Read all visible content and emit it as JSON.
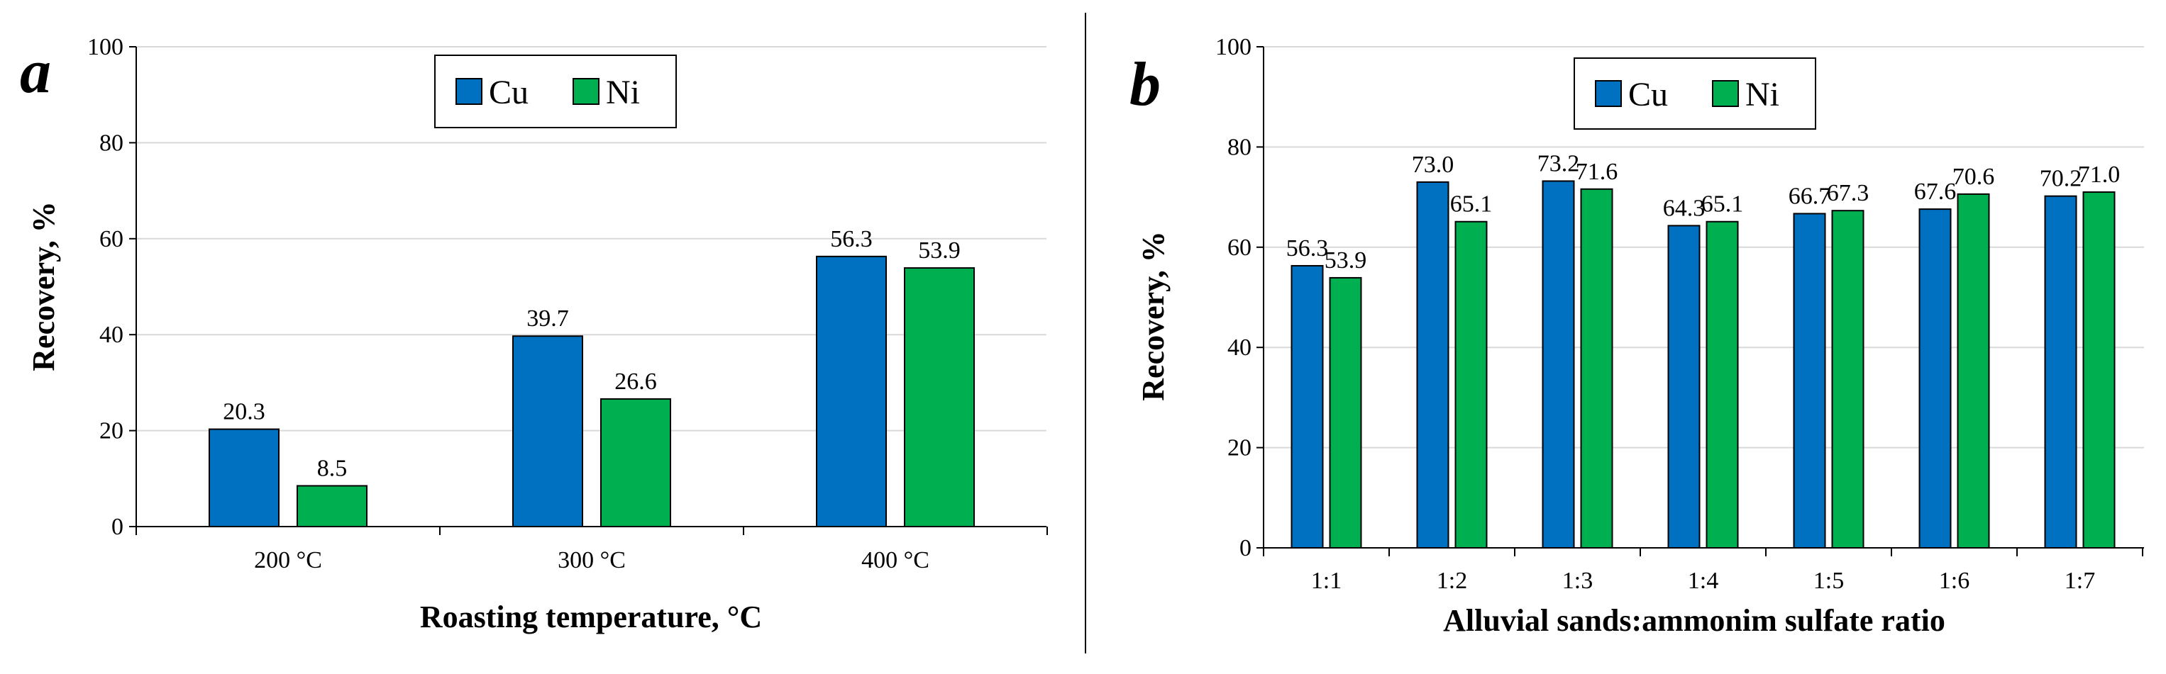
{
  "chart_data": [
    {
      "type": "bar",
      "panel_label": "a",
      "categories": [
        "200 °C",
        "300 °C",
        "400 °C"
      ],
      "series": [
        {
          "name": "Cu",
          "values": [
            20.3,
            39.7,
            56.3
          ],
          "value_labels": [
            "20.3",
            "39.7",
            "56.3"
          ],
          "color": "#0070C0"
        },
        {
          "name": "Ni",
          "values": [
            8.5,
            26.6,
            53.9
          ],
          "value_labels": [
            "8.5",
            "26.6",
            "53.9"
          ],
          "color": "#00B050"
        }
      ],
      "xlabel": "Roasting temperature, °C",
      "ylabel": "Recovery, %",
      "ylim": [
        0,
        100
      ],
      "yticks": [
        "0",
        "20",
        "40",
        "60",
        "80",
        "100"
      ],
      "grid": true,
      "legend": "top-center"
    },
    {
      "type": "bar",
      "panel_label": "b",
      "categories": [
        "1:1",
        "1:2",
        "1:3",
        "1:4",
        "1:5",
        "1:6",
        "1:7"
      ],
      "series": [
        {
          "name": "Cu",
          "values": [
            56.3,
            73.0,
            73.2,
            64.3,
            66.7,
            67.6,
            70.2
          ],
          "value_labels": [
            "56.3",
            "73.0",
            "73.2",
            "64.3",
            "66.7",
            "67.6",
            "70.2"
          ],
          "color": "#0070C0"
        },
        {
          "name": "Ni",
          "values": [
            53.9,
            65.1,
            71.6,
            65.1,
            67.3,
            70.6,
            71.0
          ],
          "value_labels": [
            "53.9",
            "65.1",
            "71.6",
            "65.1",
            "67.3",
            "70.6",
            "71.0"
          ],
          "color": "#00B050"
        }
      ],
      "xlabel": "Alluvial sands:ammonim sulfate ratio",
      "ylabel": "Recovery, %",
      "ylim": [
        0,
        100
      ],
      "yticks": [
        "0",
        "20",
        "40",
        "60",
        "80",
        "100"
      ],
      "grid": true,
      "legend": "top-center"
    }
  ]
}
